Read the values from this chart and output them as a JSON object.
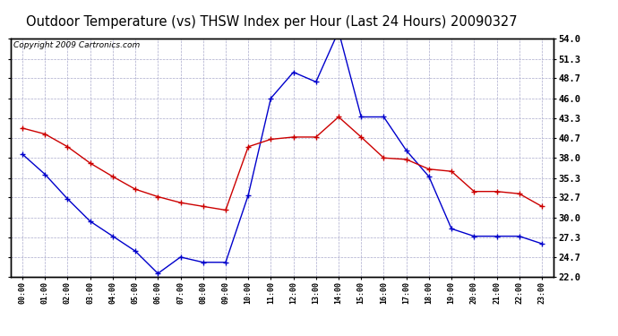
{
  "title": "Outdoor Temperature (vs) THSW Index per Hour (Last 24 Hours) 20090327",
  "copyright": "Copyright 2009 Cartronics.com",
  "hours": [
    "00:00",
    "01:00",
    "02:00",
    "03:00",
    "04:00",
    "05:00",
    "06:00",
    "07:00",
    "08:00",
    "09:00",
    "10:00",
    "11:00",
    "12:00",
    "13:00",
    "14:00",
    "15:00",
    "16:00",
    "17:00",
    "18:00",
    "19:00",
    "20:00",
    "21:00",
    "22:00",
    "23:00"
  ],
  "temp_red": [
    42.0,
    41.2,
    39.5,
    37.3,
    35.5,
    33.8,
    32.8,
    32.0,
    31.5,
    31.0,
    39.5,
    40.5,
    40.8,
    40.8,
    43.5,
    40.8,
    38.0,
    37.8,
    36.5,
    36.2,
    33.5,
    33.5,
    33.2,
    31.5
  ],
  "thsw_blue": [
    38.5,
    35.8,
    32.5,
    29.5,
    27.5,
    25.5,
    22.5,
    24.7,
    24.0,
    24.0,
    33.0,
    46.0,
    49.5,
    48.2,
    55.0,
    43.5,
    43.5,
    39.0,
    35.5,
    28.5,
    27.5,
    27.5,
    27.5,
    26.5
  ],
  "ylim_min": 22.0,
  "ylim_max": 54.0,
  "yticks": [
    22.0,
    24.7,
    27.3,
    30.0,
    32.7,
    35.3,
    38.0,
    40.7,
    43.3,
    46.0,
    48.7,
    51.3,
    54.0
  ],
  "outer_bg": "#ffffff",
  "plot_bg": "#ffffff",
  "grid_color": "#aaaacc",
  "red_color": "#cc0000",
  "blue_color": "#0000cc",
  "title_color": "#000000",
  "title_fontsize": 10.5,
  "copyright_fontsize": 6.5
}
